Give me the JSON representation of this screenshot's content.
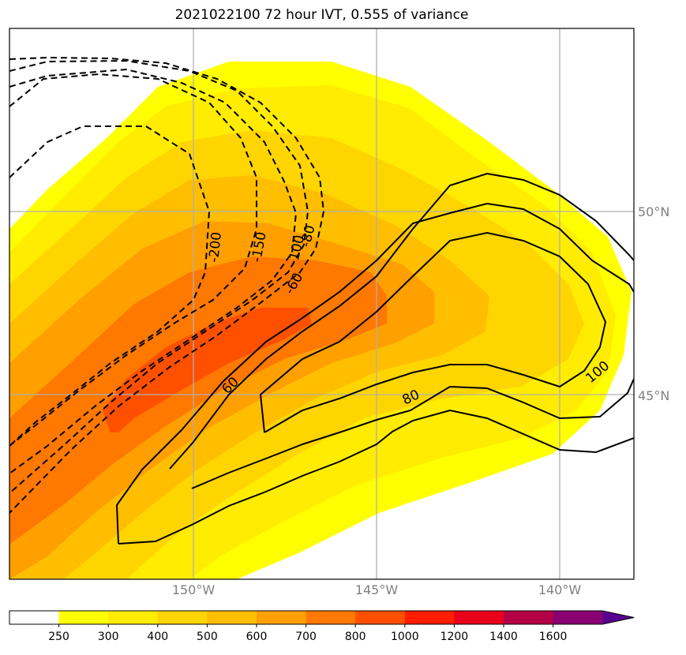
{
  "chart_data": {
    "type": "map",
    "title": "2021022100 72 hour IVT, 0.555 of variance",
    "x_ticks": [
      "150°W",
      "145°W",
      "140°W"
    ],
    "y_ticks": [
      "50°N",
      "45°N"
    ],
    "colorbar": {
      "levels": [
        "250",
        "300",
        "400",
        "500",
        "600",
        "700",
        "800",
        "1000",
        "1200",
        "1400",
        "1600"
      ],
      "colors": [
        "#ffffff",
        "#ffff00",
        "#ffec00",
        "#ffd500",
        "#ffbe00",
        "#ff9f00",
        "#ff7800",
        "#ff5000",
        "#ff1e00",
        "#e8001a",
        "#b40044",
        "#8a0072",
        "#5a0090"
      ],
      "extend": "max"
    },
    "contour_labels": [
      "-200",
      "-150",
      "-100",
      "-80",
      "-60",
      "60",
      "80",
      "100"
    ],
    "grid": true
  }
}
